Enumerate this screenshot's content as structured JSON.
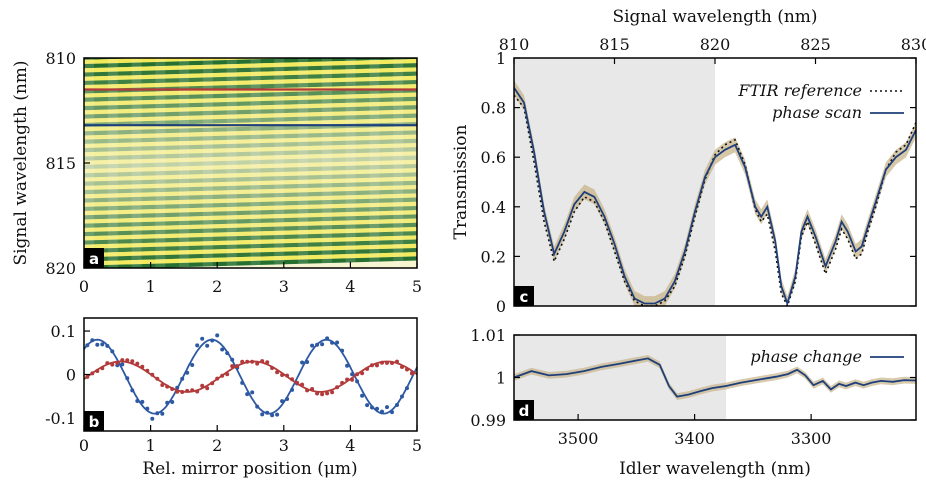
{
  "colors": {
    "phase_scan": "#1f3f7a",
    "ftir": "#111111",
    "band": "#c8b48a",
    "shade": "#e8e8e8",
    "red_series": "#b23a3a",
    "blue_series": "#2d59a3",
    "heat_dark": "#1e6b2a",
    "heat_light": "#f2e84a"
  },
  "panel_tags": {
    "a": "a",
    "b": "b",
    "c": "c",
    "d": "d"
  },
  "chart_data": [
    {
      "id": "a",
      "type": "heatmap",
      "ylabel": "Signal wavelength (nm)",
      "xlabel": "",
      "xticks": [
        "0",
        "1",
        "2",
        "3",
        "4",
        "5"
      ],
      "yticks": [
        "810",
        "815",
        "820"
      ],
      "xlim": [
        0,
        5
      ],
      "ylim": [
        810,
        820
      ],
      "marker_lines": [
        {
          "y": 811.5,
          "color": "#b23a3a"
        },
        {
          "y": 813.2,
          "color": "#1f3f7a"
        }
      ]
    },
    {
      "id": "b",
      "type": "scatter",
      "xlabel": "Rel. mirror position (μm)",
      "ylabel": "",
      "xticks": [
        "0",
        "1",
        "2",
        "3",
        "4",
        "5"
      ],
      "yticks": [
        "0.1",
        "0",
        "-0.1"
      ],
      "xlim": [
        0,
        5
      ],
      "ylim": [
        -0.13,
        0.13
      ],
      "series": [
        {
          "color": "#2d59a3",
          "amplitude": 0.085,
          "period": 1.72,
          "phase": 0.2,
          "offset": -0.005
        },
        {
          "color": "#b23a3a",
          "amplitude": 0.035,
          "period": 2.0,
          "phase": 0.55,
          "offset": -0.005
        }
      ]
    },
    {
      "id": "c",
      "type": "line",
      "top_xlabel": "Signal wavelength (nm)",
      "ylabel": "Transmission",
      "top_xticks": [
        "810",
        "815",
        "820",
        "825",
        "830"
      ],
      "yticks": [
        "1",
        "0.8",
        "0.6",
        "0.4",
        "0.2",
        "0"
      ],
      "xlim": [
        810,
        830
      ],
      "ylim": [
        0,
        1
      ],
      "shaded_region": [
        810,
        820
      ],
      "legend": [
        {
          "label": "FTIR reference",
          "style": "dotted"
        },
        {
          "label": "phase scan",
          "style": "solid"
        }
      ],
      "series": [
        {
          "name": "phase scan",
          "x": [
            810.0,
            810.5,
            811.0,
            811.5,
            812.0,
            812.5,
            813.0,
            813.5,
            814.0,
            814.5,
            815.0,
            815.5,
            816.0,
            816.5,
            817.0,
            817.5,
            818.0,
            818.5,
            819.0,
            819.5,
            820.0,
            820.5,
            821.0,
            821.5,
            822.0,
            822.3,
            822.6,
            823.0,
            823.3,
            823.6,
            824.0,
            824.3,
            824.6,
            825.0,
            825.5,
            826.0,
            826.3,
            826.6,
            827.0,
            827.3,
            827.6,
            828.0,
            828.5,
            829.0,
            829.5,
            830.0
          ],
          "values": [
            0.88,
            0.82,
            0.62,
            0.38,
            0.21,
            0.3,
            0.41,
            0.46,
            0.44,
            0.36,
            0.25,
            0.12,
            0.03,
            0.01,
            0.01,
            0.03,
            0.1,
            0.22,
            0.38,
            0.52,
            0.6,
            0.63,
            0.65,
            0.56,
            0.4,
            0.36,
            0.4,
            0.26,
            0.08,
            0.01,
            0.12,
            0.3,
            0.36,
            0.28,
            0.16,
            0.26,
            0.34,
            0.3,
            0.22,
            0.24,
            0.32,
            0.42,
            0.55,
            0.6,
            0.63,
            0.71
          ],
          "band": 0.03
        },
        {
          "name": "FTIR reference",
          "x": [
            810.0,
            810.5,
            811.0,
            811.5,
            812.0,
            812.5,
            813.0,
            813.5,
            814.0,
            814.5,
            815.0,
            815.5,
            816.0,
            816.5,
            817.0,
            817.5,
            818.0,
            818.5,
            819.0,
            819.5,
            820.0,
            820.5,
            821.0,
            821.5,
            822.0,
            822.3,
            822.6,
            823.0,
            823.3,
            823.6,
            824.0,
            824.3,
            824.6,
            825.0,
            825.5,
            826.0,
            826.3,
            826.6,
            827.0,
            827.3,
            827.6,
            828.0,
            828.5,
            829.0,
            829.5,
            830.0
          ],
          "values": [
            0.85,
            0.8,
            0.58,
            0.34,
            0.18,
            0.27,
            0.38,
            0.44,
            0.42,
            0.34,
            0.22,
            0.1,
            0.02,
            0.0,
            0.0,
            0.02,
            0.08,
            0.2,
            0.36,
            0.51,
            0.61,
            0.65,
            0.67,
            0.57,
            0.39,
            0.34,
            0.37,
            0.22,
            0.05,
            0.0,
            0.1,
            0.28,
            0.34,
            0.25,
            0.13,
            0.23,
            0.31,
            0.27,
            0.19,
            0.21,
            0.3,
            0.4,
            0.55,
            0.62,
            0.65,
            0.74
          ]
        }
      ]
    },
    {
      "id": "d",
      "type": "line",
      "xlabel": "Idler wavelength (nm)",
      "ylabel": "",
      "xticks": [
        "3500",
        "3400",
        "3300"
      ],
      "yticks": [
        "1.01",
        "1",
        "0.99"
      ],
      "xlim": [
        3555,
        3210
      ],
      "ylim": [
        0.99,
        1.01
      ],
      "shaded_region": [
        3555,
        3373
      ],
      "legend": [
        {
          "label": "phase change",
          "style": "solid"
        }
      ],
      "series": [
        {
          "name": "phase change",
          "x": [
            3555,
            3540,
            3525,
            3510,
            3495,
            3480,
            3465,
            3450,
            3440,
            3430,
            3422,
            3415,
            3405,
            3395,
            3385,
            3373,
            3360,
            3345,
            3330,
            3320,
            3312,
            3305,
            3298,
            3290,
            3283,
            3276,
            3270,
            3262,
            3255,
            3248,
            3240,
            3230,
            3220,
            3210
          ],
          "values": [
            1.0,
            1.0015,
            1.0005,
            1.0008,
            1.0015,
            1.0025,
            1.0032,
            1.004,
            1.0045,
            1.003,
            0.998,
            0.9955,
            0.996,
            0.9968,
            0.9975,
            0.998,
            0.9988,
            0.9995,
            1.0002,
            1.0008,
            1.0018,
            1.0005,
            0.9982,
            0.9992,
            0.9972,
            0.9985,
            0.998,
            0.9988,
            0.9982,
            0.9988,
            0.9992,
            0.999,
            0.9994,
            0.9993
          ],
          "band": 0.0008
        }
      ]
    }
  ]
}
